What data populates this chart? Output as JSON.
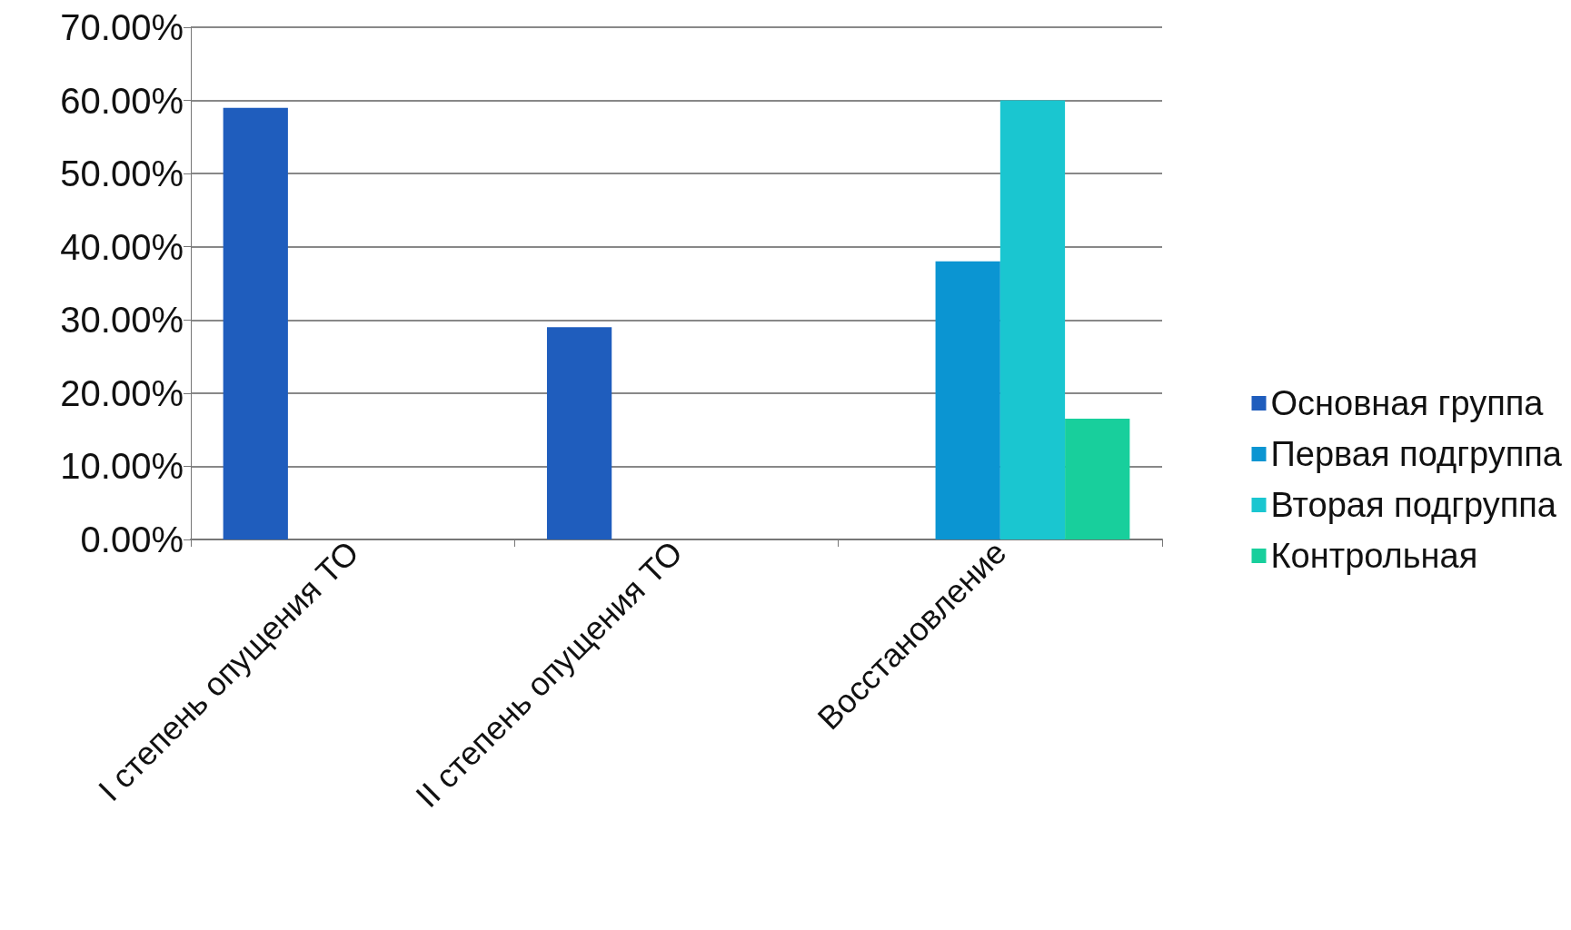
{
  "chart_data": {
    "type": "bar",
    "categories": [
      "I степень опущения ТО",
      "II степень опущения ТО",
      "Восстановление"
    ],
    "series": [
      {
        "name": "Основная группа",
        "color": "#1f5dbd",
        "values": [
          59,
          29,
          null
        ]
      },
      {
        "name": "Первая подгруппа",
        "color": "#0b95d2",
        "values": [
          null,
          null,
          38
        ]
      },
      {
        "name": "Вторая подгруппа",
        "color": "#1ac6d0",
        "values": [
          null,
          null,
          60
        ]
      },
      {
        "name": "Контрольная",
        "color": "#18cf9c",
        "values": [
          null,
          null,
          16.5
        ]
      }
    ],
    "ylim": [
      0,
      70
    ],
    "yticks": [
      {
        "value": 0,
        "label": "0.00%"
      },
      {
        "value": 10,
        "label": "10.00%"
      },
      {
        "value": 20,
        "label": "20.00%"
      },
      {
        "value": 30,
        "label": "30.00%"
      },
      {
        "value": 40,
        "label": "40.00%"
      },
      {
        "value": 50,
        "label": "50.00%"
      },
      {
        "value": 60,
        "label": "60.00%"
      },
      {
        "value": 70,
        "label": "70.00%"
      }
    ],
    "grid": "y",
    "legend": "right"
  }
}
